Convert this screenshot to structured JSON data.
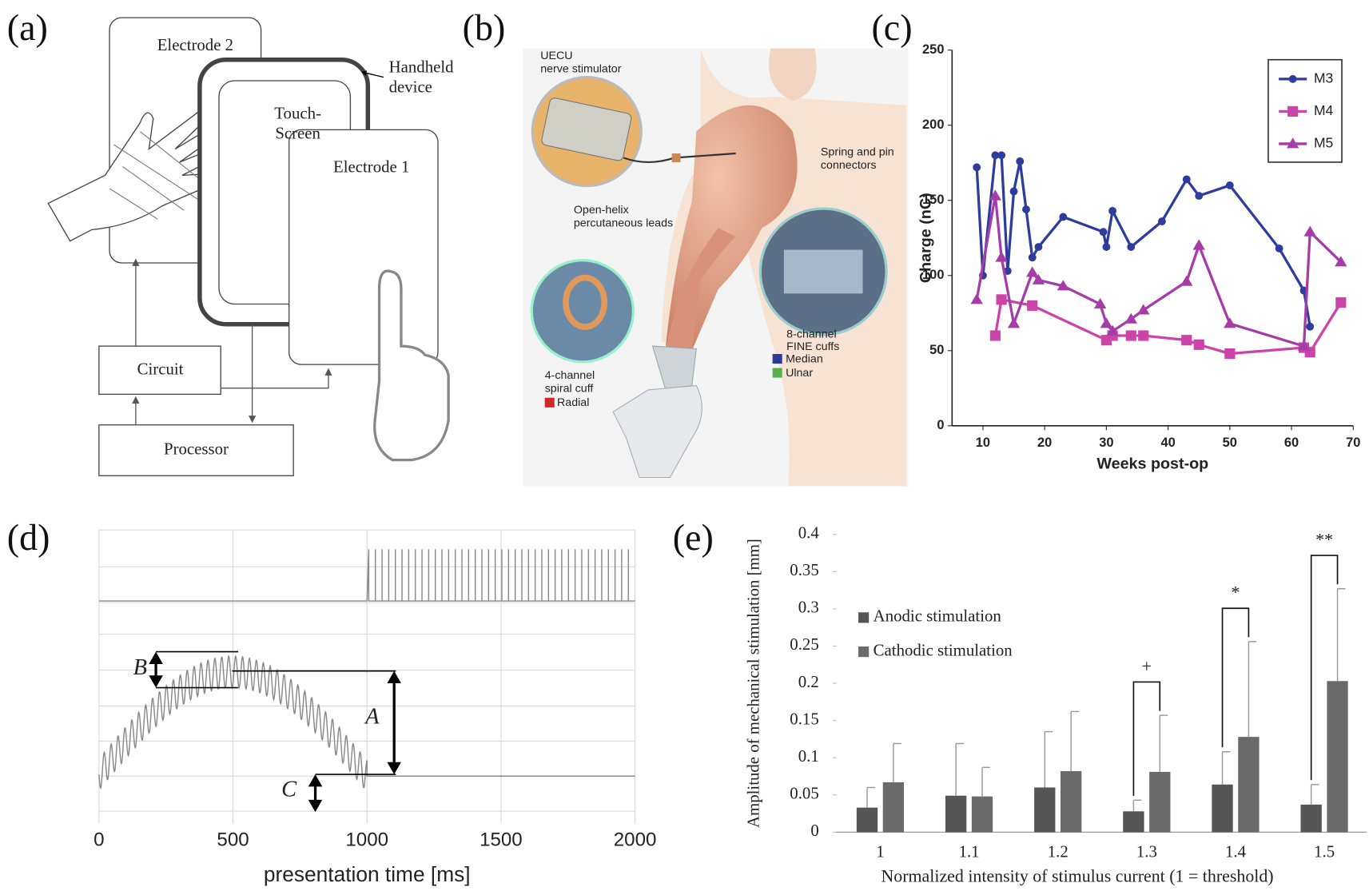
{
  "panel_labels": [
    "(a)",
    "(b)",
    "(c)",
    "(d)",
    "(e)"
  ],
  "diagram_a": {
    "labels": [
      "Electrode 2",
      "Handheld",
      "device",
      "Touch-",
      "Screen",
      "Electrode 1",
      "Circuit",
      "Processor"
    ]
  },
  "image_b": {
    "labels": [
      "UECU",
      "nerve stimulator",
      "Open-helix",
      "percutaneous leads",
      "Spring and pin",
      "connectors",
      "4-channel",
      "spiral cuff",
      "Radial",
      "8-channel",
      "FINE cuffs",
      "Median",
      "Ulnar"
    ]
  },
  "chart_data": [
    {
      "type": "line",
      "xlabel": "Weeks post-op",
      "ylabel": "Charge (nC)",
      "xlim": [
        5,
        70
      ],
      "xticks": [
        10,
        20,
        30,
        40,
        50,
        60,
        70
      ],
      "ylim": [
        0,
        250
      ],
      "yticks": [
        0,
        50,
        100,
        150,
        200,
        250
      ],
      "legend": "upper right",
      "series": [
        {
          "name": "M3",
          "color": "#2e3c9c",
          "marker": "circle",
          "x": [
            9,
            10,
            12,
            13,
            14,
            15,
            16,
            17,
            18,
            19,
            23,
            29.5,
            30,
            31,
            34,
            39,
            43,
            45,
            50,
            58,
            62,
            63
          ],
          "values": [
            172,
            100,
            180,
            180,
            103,
            156,
            176,
            144,
            112,
            119,
            139,
            129,
            119,
            143,
            119,
            136,
            164,
            153,
            160,
            118,
            90,
            66
          ]
        },
        {
          "name": "M4",
          "color": "#cc44aa",
          "marker": "square",
          "x": [
            12,
            13,
            18,
            30,
            31,
            34,
            36,
            43,
            45,
            50,
            62,
            63,
            68
          ],
          "values": [
            60,
            84,
            80,
            57,
            60,
            60,
            60,
            57,
            54,
            48,
            52,
            49,
            82
          ]
        },
        {
          "name": "M5",
          "color": "#a63ca8",
          "marker": "triangle",
          "x": [
            9,
            12,
            13,
            15,
            18,
            19,
            23,
            29,
            30,
            31,
            34,
            36,
            43,
            45,
            50,
            62,
            63,
            68
          ],
          "values": [
            84,
            153,
            112,
            68,
            102,
            97,
            93,
            81,
            68,
            63,
            71,
            77,
            96,
            120,
            68,
            53,
            129,
            109
          ]
        }
      ]
    },
    {
      "type": "waveform",
      "xlabel": "presentation time [ms]",
      "xlim": [
        0,
        2000
      ],
      "xticks": [
        0,
        500,
        1000,
        1500,
        2000
      ],
      "annotations": [
        "A",
        "B",
        "C"
      ],
      "grid": true
    },
    {
      "type": "bar",
      "xlabel": "Normalized intensity of stimulus current (1 = threshold)",
      "ylabel": "Amplitude of mechanical stimulation [mm]",
      "categories": [
        "1",
        "1.1",
        "1.2",
        "1.3",
        "1.4",
        "1.5"
      ],
      "ylim": [
        0,
        0.4
      ],
      "yticks": [
        0,
        0.05,
        0.1,
        0.15,
        0.2,
        0.25,
        0.3,
        0.35,
        0.4
      ],
      "significance": [
        null,
        null,
        null,
        "+",
        "*",
        "**"
      ],
      "series": [
        {
          "name": "Anodic stimulation",
          "color": "#555555",
          "values": [
            0.033,
            0.049,
            0.06,
            0.028,
            0.064,
            0.037
          ],
          "errors": [
            0.027,
            0.07,
            0.075,
            0.015,
            0.044,
            0.027
          ]
        },
        {
          "name": "Cathodic stimulation",
          "color": "#6a6a6a",
          "values": [
            0.067,
            0.048,
            0.082,
            0.081,
            0.128,
            0.203
          ],
          "errors": [
            0.052,
            0.039,
            0.08,
            0.076,
            0.128,
            0.124
          ]
        }
      ]
    }
  ]
}
